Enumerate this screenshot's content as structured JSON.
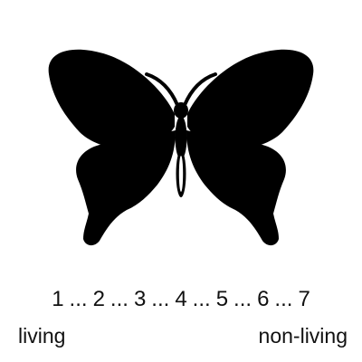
{
  "figure": {
    "icon": "butterfly-silhouette",
    "color": "#000000"
  },
  "scale": {
    "points": [
      "1",
      "2",
      "3",
      "4",
      "5",
      "6",
      "7"
    ],
    "separator": "...",
    "left_anchor": "living",
    "right_anchor": "non-living"
  }
}
